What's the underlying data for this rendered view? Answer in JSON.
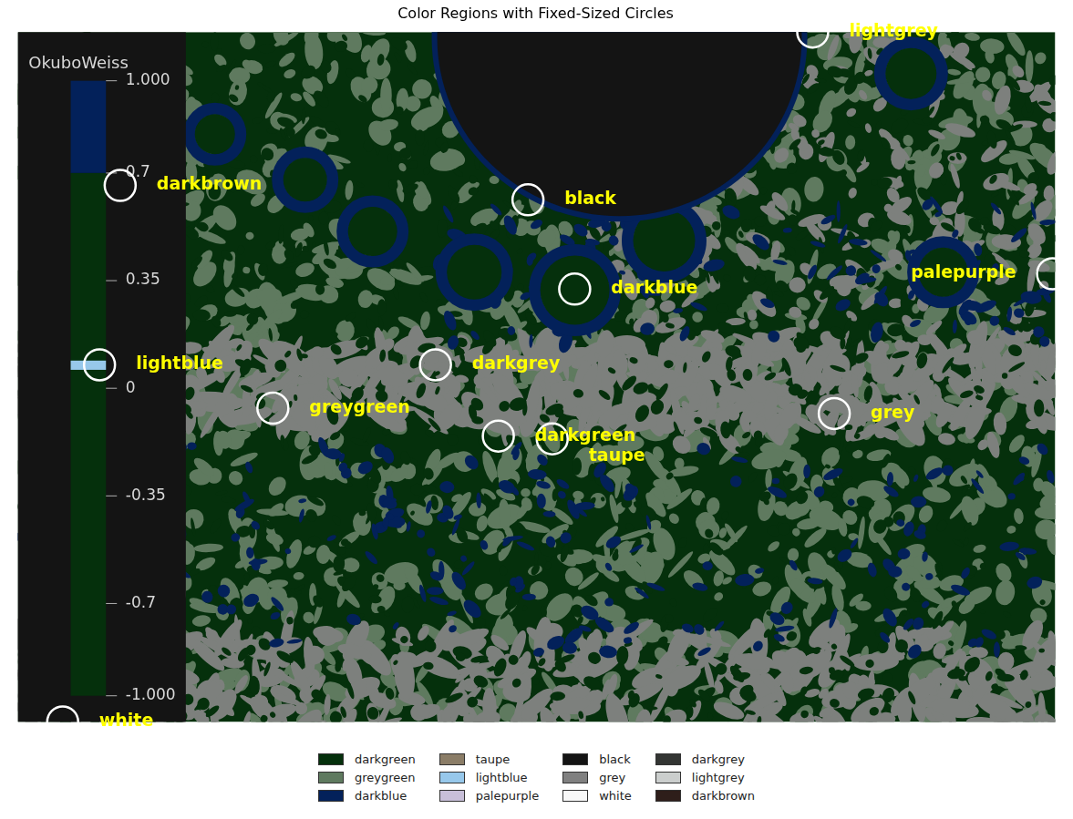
{
  "chart_data": {
    "type": "scatter",
    "title": "Color Regions with Fixed-Sized Circles",
    "xlim": [
      0,
      1155
    ],
    "ylim": [
      0,
      765
    ],
    "tick_labels": false,
    "grid": false,
    "legend": "bottom",
    "marker": "circle",
    "series": [
      {
        "name": "darkgreen",
        "color": "#05300c",
        "x": [
          535
        ],
        "values": [
          317
        ]
      },
      {
        "name": "greygreen",
        "color": "#5f7a5f",
        "x": [
          284
        ],
        "values": [
          348
        ]
      },
      {
        "name": "darkblue",
        "color": "#03215a",
        "x": [
          620
        ],
        "values": [
          480
        ]
      },
      {
        "name": "taupe",
        "color": "#8b7d67",
        "x": [
          595
        ],
        "values": [
          314
        ]
      },
      {
        "name": "lightblue",
        "color": "#97c8eb",
        "x": [
          91
        ],
        "values": [
          396
        ]
      },
      {
        "name": "palepurple",
        "color": "#c8bfd9",
        "x": [
          1152
        ],
        "values": [
          497
        ]
      },
      {
        "name": "black",
        "color": "#141414",
        "x": [
          568
        ],
        "values": [
          579
        ]
      },
      {
        "name": "grey",
        "color": "#808080",
        "x": [
          909
        ],
        "values": [
          342
        ]
      },
      {
        "name": "white",
        "color": "#f8f8f8",
        "x": [
          50
        ],
        "values": [
          0
        ]
      },
      {
        "name": "darkgrey",
        "color": "#333533",
        "x": [
          465
        ],
        "values": [
          396
        ]
      },
      {
        "name": "lightgrey",
        "color": "#cbcecd",
        "x": [
          885
        ],
        "values": [
          765
        ]
      },
      {
        "name": "darkbrown",
        "color": "#2e1e1a",
        "x": [
          114
        ],
        "values": [
          595
        ]
      }
    ],
    "colorbar": {
      "label": "OkuboWeiss",
      "range": [
        -1,
        1
      ],
      "ticks": [
        {
          "value": 1,
          "label": "1.000"
        },
        0.7,
        0.35,
        0,
        -0.35,
        -0.7,
        {
          "value": -1,
          "label": "-1.000"
        }
      ],
      "segments": [
        {
          "range": [
            0.7,
            1
          ],
          "color": "#03215a"
        },
        {
          "range": [
            -1,
            0.7
          ],
          "color": "#05300c"
        },
        {
          "range": [
            0.06,
            0.09
          ],
          "color": "#97c8eb"
        }
      ]
    }
  }
}
